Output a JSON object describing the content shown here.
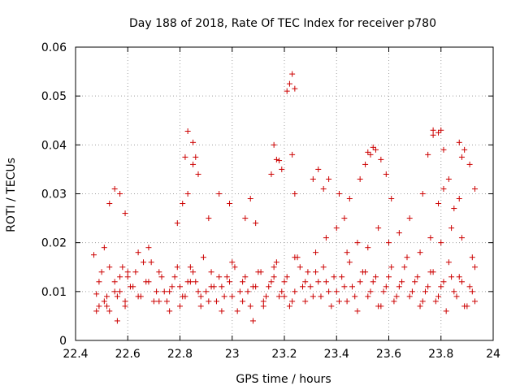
{
  "chart_data": {
    "type": "scatter",
    "title": "Day 188 of 2018, Rate Of TEC Index for receiver p780",
    "xlabel": "GPS time / hours",
    "ylabel": "ROTI / TECUs",
    "xlim": [
      22.4,
      24.0
    ],
    "ylim": [
      0.0,
      0.06
    ],
    "xticks": [
      22.4,
      22.6,
      22.8,
      23.0,
      23.2,
      23.4,
      23.6,
      23.8,
      24.0
    ],
    "xtick_labels": [
      "22.4",
      "22.6",
      "22.8",
      "23",
      "23.2",
      "23.4",
      "23.6",
      "23.8",
      "24"
    ],
    "yticks": [
      0,
      0.01,
      0.02,
      0.03,
      0.04,
      0.05,
      0.06
    ],
    "ytick_labels": [
      "0",
      "0.01",
      "0.02",
      "0.03",
      "0.04",
      "0.05",
      "0.06"
    ],
    "grid": true,
    "marker": "+",
    "marker_color": "#cc0000",
    "series": [
      {
        "name": "ROTI p780",
        "x": [
          22.47,
          22.48,
          22.49,
          22.5,
          22.51,
          22.52,
          22.53,
          22.55,
          22.56,
          22.57,
          22.58,
          22.59,
          22.6,
          22.62,
          22.64,
          22.66,
          22.68,
          22.7,
          22.72,
          22.74,
          22.76,
          22.78,
          22.8,
          22.82,
          22.84,
          22.86,
          22.88,
          22.9,
          22.92,
          22.94,
          22.96,
          22.98,
          23.0,
          23.02,
          23.04,
          23.06,
          23.08,
          23.1,
          23.12,
          23.14,
          23.16,
          23.18,
          23.2,
          23.22,
          23.24,
          23.26,
          23.28,
          23.3,
          23.32,
          23.34,
          23.36,
          23.38,
          23.4,
          23.42,
          23.44,
          23.46,
          23.48,
          23.5,
          23.52,
          23.54,
          23.56,
          23.58,
          23.6,
          23.62,
          23.64,
          23.66,
          23.68,
          23.7,
          23.72,
          23.74,
          23.76,
          23.78,
          23.8,
          23.82,
          23.84,
          23.86,
          23.88,
          23.9,
          23.92,
          23.93,
          22.49,
          22.51,
          22.53,
          22.55,
          22.57,
          22.59,
          22.61,
          22.63,
          22.65,
          22.67,
          22.69,
          22.71,
          22.73,
          22.75,
          22.77,
          22.79,
          22.81,
          22.83,
          22.85,
          22.87,
          22.89,
          22.91,
          22.93,
          22.95,
          22.97,
          22.99,
          23.01,
          23.03,
          23.05,
          23.07,
          23.09,
          23.11,
          23.13,
          23.15,
          23.17,
          23.19,
          23.21,
          23.23,
          23.25,
          23.27,
          23.29,
          23.31,
          23.33,
          23.35,
          23.37,
          23.39,
          23.41,
          23.43,
          23.45,
          23.47,
          23.49,
          23.51,
          23.53,
          23.55,
          23.57,
          23.59,
          23.61,
          23.63,
          23.65,
          23.67,
          23.69,
          23.71,
          23.73,
          23.75,
          23.77,
          23.79,
          23.81,
          23.83,
          23.85,
          23.87,
          23.89,
          23.91,
          23.93,
          22.48,
          22.52,
          22.56,
          22.6,
          22.64,
          22.68,
          22.72,
          22.76,
          22.8,
          22.84,
          22.88,
          22.92,
          22.96,
          23.0,
          23.04,
          23.08,
          23.12,
          23.16,
          23.2,
          23.24,
          23.28,
          23.32,
          23.36,
          23.4,
          23.44,
          23.48,
          23.52,
          23.56,
          23.6,
          23.64,
          23.68,
          23.72,
          23.76,
          23.8,
          23.84,
          23.88,
          23.92,
          22.53,
          22.55,
          22.57,
          22.59,
          22.79,
          22.81,
          22.83,
          22.85,
          22.87,
          22.91,
          22.95,
          22.99,
          23.05,
          23.07,
          23.09,
          23.15,
          23.17,
          23.19,
          23.23,
          23.24,
          23.31,
          23.33,
          23.35,
          23.37,
          23.41,
          23.43,
          23.45,
          23.49,
          23.51,
          23.53,
          23.55,
          23.57,
          23.59,
          23.61,
          23.73,
          23.75,
          23.77,
          23.79,
          23.81,
          23.83,
          23.85,
          23.87,
          23.89,
          23.91,
          23.93,
          22.82,
          22.83,
          22.85,
          22.86,
          23.16,
          23.18,
          23.21,
          23.22,
          23.23,
          23.24,
          23.52,
          23.54,
          23.77,
          23.79,
          23.8,
          23.81,
          23.87,
          23.88
        ],
        "y": [
          0.0175,
          0.0095,
          0.007,
          0.014,
          0.019,
          0.009,
          0.006,
          0.012,
          0.004,
          0.01,
          0.015,
          0.008,
          0.013,
          0.011,
          0.009,
          0.016,
          0.012,
          0.008,
          0.014,
          0.01,
          0.006,
          0.013,
          0.011,
          0.009,
          0.015,
          0.012,
          0.007,
          0.01,
          0.014,
          0.008,
          0.011,
          0.013,
          0.009,
          0.006,
          0.012,
          0.01,
          0.004,
          0.014,
          0.008,
          0.011,
          0.013,
          0.009,
          0.012,
          0.007,
          0.01,
          0.015,
          0.008,
          0.011,
          0.014,
          0.009,
          0.012,
          0.007,
          0.01,
          0.013,
          0.008,
          0.011,
          0.006,
          0.014,
          0.009,
          0.012,
          0.007,
          0.01,
          0.013,
          0.008,
          0.011,
          0.015,
          0.009,
          0.012,
          0.007,
          0.01,
          0.014,
          0.008,
          0.011,
          0.006,
          0.013,
          0.009,
          0.012,
          0.007,
          0.01,
          0.008,
          0.012,
          0.008,
          0.015,
          0.01,
          0.013,
          0.007,
          0.011,
          0.014,
          0.009,
          0.012,
          0.016,
          0.01,
          0.013,
          0.008,
          0.011,
          0.015,
          0.009,
          0.012,
          0.014,
          0.01,
          0.017,
          0.008,
          0.011,
          0.013,
          0.009,
          0.012,
          0.015,
          0.01,
          0.013,
          0.007,
          0.011,
          0.014,
          0.009,
          0.012,
          0.016,
          0.01,
          0.013,
          0.008,
          0.017,
          0.011,
          0.014,
          0.009,
          0.012,
          0.015,
          0.01,
          0.013,
          0.008,
          0.011,
          0.016,
          0.009,
          0.012,
          0.014,
          0.01,
          0.013,
          0.007,
          0.011,
          0.015,
          0.009,
          0.012,
          0.017,
          0.01,
          0.013,
          0.008,
          0.011,
          0.014,
          0.009,
          0.012,
          0.016,
          0.01,
          0.013,
          0.007,
          0.011,
          0.015,
          0.006,
          0.007,
          0.009,
          0.014,
          0.018,
          0.019,
          0.008,
          0.01,
          0.007,
          0.012,
          0.009,
          0.011,
          0.006,
          0.016,
          0.008,
          0.011,
          0.007,
          0.015,
          0.009,
          0.017,
          0.012,
          0.018,
          0.021,
          0.023,
          0.018,
          0.02,
          0.019,
          0.023,
          0.02,
          0.022,
          0.025,
          0.018,
          0.021,
          0.02,
          0.023,
          0.021,
          0.017,
          0.028,
          0.031,
          0.03,
          0.026,
          0.024,
          0.028,
          0.03,
          0.036,
          0.034,
          0.025,
          0.03,
          0.028,
          0.025,
          0.029,
          0.024,
          0.034,
          0.037,
          0.035,
          0.038,
          0.03,
          0.033,
          0.035,
          0.031,
          0.033,
          0.03,
          0.025,
          0.029,
          0.033,
          0.036,
          0.038,
          0.039,
          0.037,
          0.034,
          0.029,
          0.03,
          0.038,
          0.042,
          0.028,
          0.031,
          0.033,
          0.027,
          0.029,
          0.039,
          0.036,
          0.031,
          0.0375,
          0.0428,
          0.0405,
          0.0375,
          0.04,
          0.0368,
          0.051,
          0.0525,
          0.0545,
          0.0515,
          0.0385,
          0.0395,
          0.043,
          0.0425,
          0.043,
          0.039,
          0.0405,
          0.0375
        ]
      }
    ]
  }
}
